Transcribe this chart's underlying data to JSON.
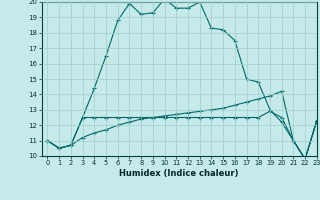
{
  "xlabel": "Humidex (Indice chaleur)",
  "xlim": [
    -0.5,
    23
  ],
  "ylim": [
    10,
    20
  ],
  "yticks": [
    10,
    11,
    12,
    13,
    14,
    15,
    16,
    17,
    18,
    19,
    20
  ],
  "xticks": [
    0,
    1,
    2,
    3,
    4,
    5,
    6,
    7,
    8,
    9,
    10,
    11,
    12,
    13,
    14,
    15,
    16,
    17,
    18,
    19,
    20,
    21,
    22,
    23
  ],
  "background_color": "#c6eaea",
  "grid_color": "#9ecece",
  "line_color": "#006868",
  "series": [
    [
      11.0,
      10.5,
      10.7,
      12.5,
      14.4,
      16.5,
      18.8,
      19.9,
      19.2,
      19.3,
      20.2,
      19.6,
      19.6,
      20.0,
      18.3,
      18.2,
      17.5,
      15.0,
      14.8,
      13.0,
      12.2,
      11.0,
      9.8,
      12.3
    ],
    [
      11.0,
      10.5,
      10.7,
      12.5,
      12.5,
      12.5,
      12.5,
      12.5,
      12.5,
      12.5,
      12.5,
      12.5,
      12.5,
      12.5,
      12.5,
      12.5,
      12.5,
      12.5,
      12.5,
      12.9,
      12.5,
      11.0,
      9.8,
      12.3
    ],
    [
      11.0,
      10.5,
      10.7,
      11.2,
      11.5,
      11.7,
      12.0,
      12.2,
      12.4,
      12.5,
      12.6,
      12.7,
      12.8,
      12.9,
      13.0,
      13.1,
      13.3,
      13.5,
      13.7,
      13.9,
      14.2,
      11.0,
      9.8,
      12.3
    ]
  ]
}
